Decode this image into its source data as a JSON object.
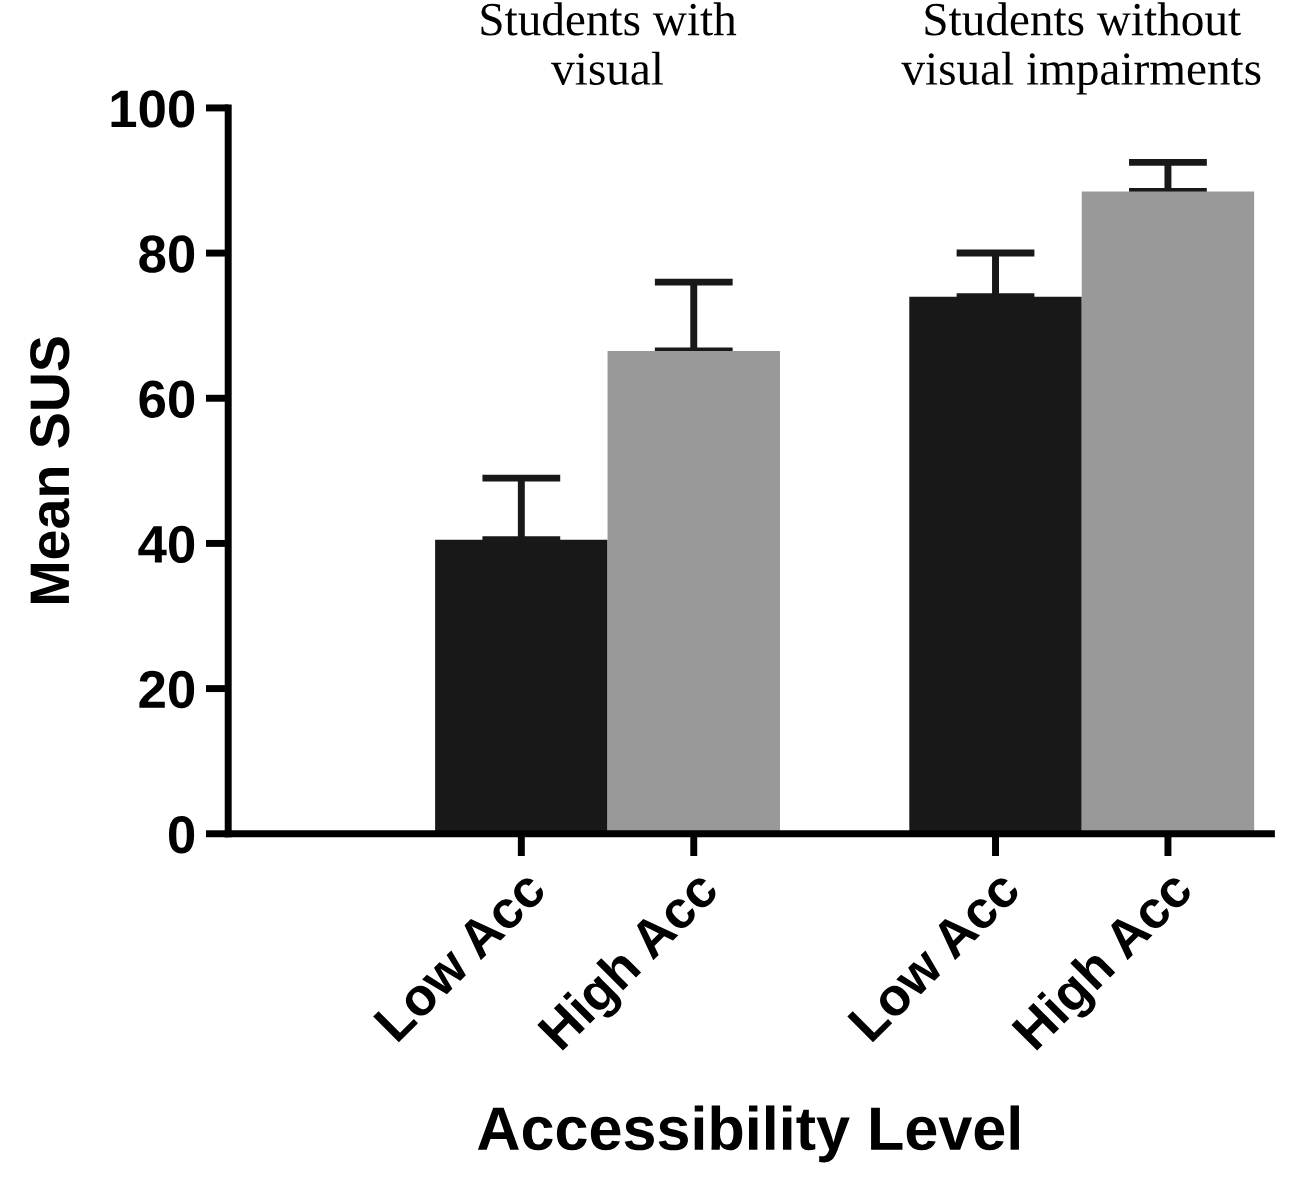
{
  "chart_data": {
    "type": "bar",
    "xlabel": "Accessibility Level",
    "ylabel": "Mean SUS",
    "categories": [
      "Low Acc",
      "High Acc",
      "Low Acc",
      "High Acc"
    ],
    "values": [
      40.5,
      66.5,
      74,
      88.5
    ],
    "colors": [
      "#181818",
      "#999999",
      "#181818",
      "#999999"
    ],
    "errors": [
      [
        40.5,
        49
      ],
      [
        66.5,
        76
      ],
      [
        74,
        80
      ],
      [
        88.5,
        92.5
      ]
    ],
    "ylim": [
      0,
      100
    ],
    "yticks": [
      0,
      20,
      40,
      60,
      80,
      100
    ],
    "grid": false,
    "legend": false,
    "annotations": [
      "Students with\nvisual",
      "Students without\nvisual impairments"
    ]
  }
}
